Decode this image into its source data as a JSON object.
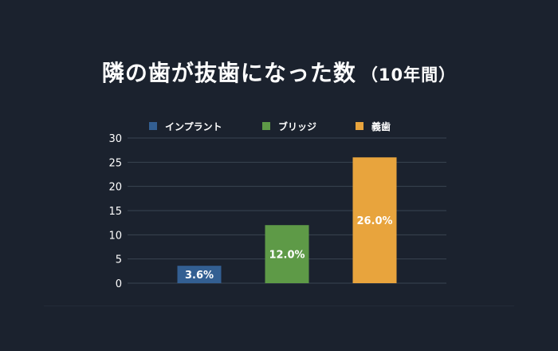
{
  "title": "隣の歯が抜歯になった数",
  "subtitle": "（10年間）",
  "chart_data": {
    "type": "bar",
    "title": "隣の歯が抜歯になった数（10年間）",
    "categories": [
      "インプラント",
      "ブリッジ",
      "義歯"
    ],
    "values": [
      3.6,
      12.0,
      26.0
    ],
    "data_labels": [
      "3.6%",
      "12.0%",
      "26.0%"
    ],
    "colors": [
      "#335f92",
      "#5e9a47",
      "#e8a43d"
    ],
    "legend": [
      "インプラント",
      "ブリッジ",
      "義歯"
    ],
    "legend_position": "top",
    "ylim": [
      0,
      30
    ],
    "yticks": [
      "0",
      "5",
      "10",
      "15",
      "20",
      "25",
      "30"
    ],
    "grid": true,
    "xlabel": "",
    "ylabel": ""
  }
}
